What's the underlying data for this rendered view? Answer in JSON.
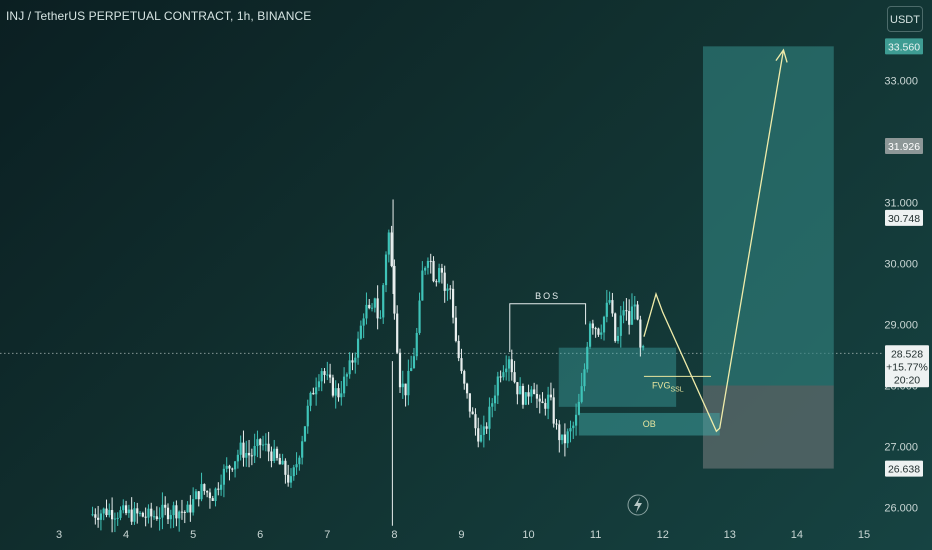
{
  "header": {
    "title": "INJ / TetherUS PERPETUAL CONTRACT, 1h, BINANCE",
    "currency": "USDT"
  },
  "colors": {
    "background": "#11302f",
    "up_candle": "#3fc3b8",
    "down_candle": "#e8eeee",
    "target_zone": "#2f7f7d",
    "stop_zone": "#5d6c6e",
    "projection": "#f0ecaa",
    "fvg_zone": "#3fa8a6",
    "label_text": "#e8e6a0"
  },
  "chart_data": {
    "type": "candlestick",
    "title": "INJ / TetherUS PERPETUAL CONTRACT, 1h, BINANCE",
    "y_axis": {
      "min": 26.0,
      "max": 33.6,
      "ticks": [
        "26.000",
        "27.000",
        "28.000",
        "29.000",
        "30.000",
        "31.000",
        "32.000",
        "33.000"
      ]
    },
    "x_axis": {
      "ticks": [
        {
          "label": "3",
          "day": 3
        },
        {
          "label": "4",
          "day": 4
        },
        {
          "label": "5",
          "day": 5
        },
        {
          "label": "6",
          "day": 6
        },
        {
          "label": "7",
          "day": 7
        },
        {
          "label": "8",
          "day": 8
        },
        {
          "label": "9",
          "day": 9
        },
        {
          "label": "10",
          "day": 10
        },
        {
          "label": "11",
          "day": 11
        },
        {
          "label": "12",
          "day": 12
        },
        {
          "label": "13",
          "day": 13
        },
        {
          "label": "14",
          "day": 14
        },
        {
          "label": "15",
          "day": 15
        }
      ]
    },
    "price_path": [
      [
        3.5,
        25.88
      ],
      [
        3.75,
        25.95
      ],
      [
        4.0,
        25.9
      ],
      [
        4.4,
        25.85
      ],
      [
        4.75,
        25.97
      ],
      [
        4.95,
        25.92
      ],
      [
        5.15,
        26.3
      ],
      [
        5.35,
        26.2
      ],
      [
        5.45,
        26.5
      ],
      [
        5.6,
        26.7
      ],
      [
        5.75,
        26.95
      ],
      [
        5.9,
        26.85
      ],
      [
        6.05,
        27.05
      ],
      [
        6.2,
        26.9
      ],
      [
        6.4,
        26.6
      ],
      [
        6.5,
        26.4
      ],
      [
        6.6,
        26.8
      ],
      [
        6.75,
        27.6
      ],
      [
        6.85,
        28.0
      ],
      [
        6.95,
        28.3
      ],
      [
        7.05,
        28.05
      ],
      [
        7.2,
        27.85
      ],
      [
        7.35,
        28.2
      ],
      [
        7.5,
        28.7
      ],
      [
        7.6,
        29.3
      ],
      [
        7.7,
        29.1
      ],
      [
        7.75,
        29.5
      ],
      [
        7.82,
        28.9
      ],
      [
        7.9,
        30.0
      ],
      [
        7.95,
        30.6
      ],
      [
        7.98,
        30.2
      ],
      [
        8.05,
        29.2
      ],
      [
        8.12,
        28.1
      ],
      [
        8.2,
        27.9
      ],
      [
        8.3,
        28.3
      ],
      [
        8.4,
        29.0
      ],
      [
        8.45,
        29.8
      ],
      [
        8.55,
        30.2
      ],
      [
        8.65,
        29.7
      ],
      [
        8.72,
        30.1
      ],
      [
        8.8,
        29.5
      ],
      [
        8.88,
        29.6
      ],
      [
        8.95,
        28.8
      ],
      [
        9.05,
        28.1
      ],
      [
        9.15,
        27.7
      ],
      [
        9.25,
        27.3
      ],
      [
        9.35,
        27.1
      ],
      [
        9.45,
        27.5
      ],
      [
        9.6,
        28.2
      ],
      [
        9.75,
        28.5
      ],
      [
        9.85,
        28.0
      ],
      [
        10.0,
        27.75
      ],
      [
        10.1,
        28.1
      ],
      [
        10.2,
        27.6
      ],
      [
        10.35,
        27.8
      ],
      [
        10.45,
        27.3
      ],
      [
        10.55,
        27.05
      ],
      [
        10.7,
        27.3
      ],
      [
        10.75,
        27.45
      ],
      [
        10.85,
        28.0
      ],
      [
        10.95,
        29.1
      ],
      [
        11.1,
        28.9
      ],
      [
        11.25,
        29.4
      ],
      [
        11.35,
        28.6
      ],
      [
        11.45,
        29.3
      ],
      [
        11.55,
        29.0
      ],
      [
        11.62,
        29.5
      ],
      [
        11.7,
        28.55
      ],
      [
        11.72,
        28.53
      ]
    ],
    "last_price": "28.528",
    "change_percent": "+15.77%",
    "countdown": "20:20",
    "price_tags": [
      {
        "value": 33.56,
        "label": "33.560",
        "style": "target"
      },
      {
        "value": 31.926,
        "label": "31.926",
        "style": "grey"
      },
      {
        "value": 30.748,
        "label": "30.748",
        "style": "white"
      },
      {
        "value": 26.638,
        "label": "26.638",
        "style": "white"
      }
    ],
    "annotations": {
      "bos": {
        "label": "BOS",
        "day_start": 9.72,
        "day_end": 10.85,
        "price": 29.34
      },
      "fvg": {
        "label": "FVG",
        "subscript": "SSL",
        "day_start": 10.45,
        "day_end": 12.2,
        "price_top": 28.62,
        "price_bottom": 27.65
      },
      "fvg_line": {
        "day_start": 11.72,
        "day_end": 12.72,
        "price": 28.15
      },
      "ob": {
        "label": "OB",
        "day_start": 10.75,
        "day_end": 12.85,
        "price_top": 27.55,
        "price_bottom": 27.18
      },
      "target_zone": {
        "day_start": 12.6,
        "day_end": 14.55,
        "price_top": 33.56,
        "price_bottom": 28.0
      },
      "stop_zone": {
        "day_start": 12.6,
        "day_end": 14.55,
        "price_top": 28.0,
        "price_bottom": 26.638
      },
      "projection": [
        [
          11.72,
          28.8
        ],
        [
          11.9,
          29.5
        ],
        [
          12.0,
          29.2
        ],
        [
          12.8,
          27.25
        ],
        [
          12.85,
          27.3
        ],
        [
          13.8,
          33.5
        ]
      ],
      "current_price_line": 28.528
    }
  }
}
